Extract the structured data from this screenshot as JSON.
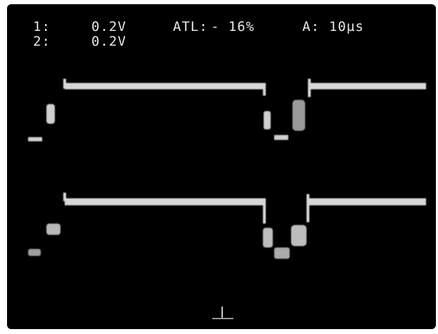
{
  "display": {
    "ch1_label": "1:",
    "ch1_scale": "0.2V",
    "ch2_label": "2:",
    "ch2_scale": "0.2V",
    "trigger_label": "ATL:",
    "trigger_value": "- 16%",
    "timebase_label": "A:",
    "timebase_value": "10µs"
  },
  "colors": {
    "screen": "#000000",
    "trace": "#d8d8d8",
    "text": "#e8e8e8"
  }
}
